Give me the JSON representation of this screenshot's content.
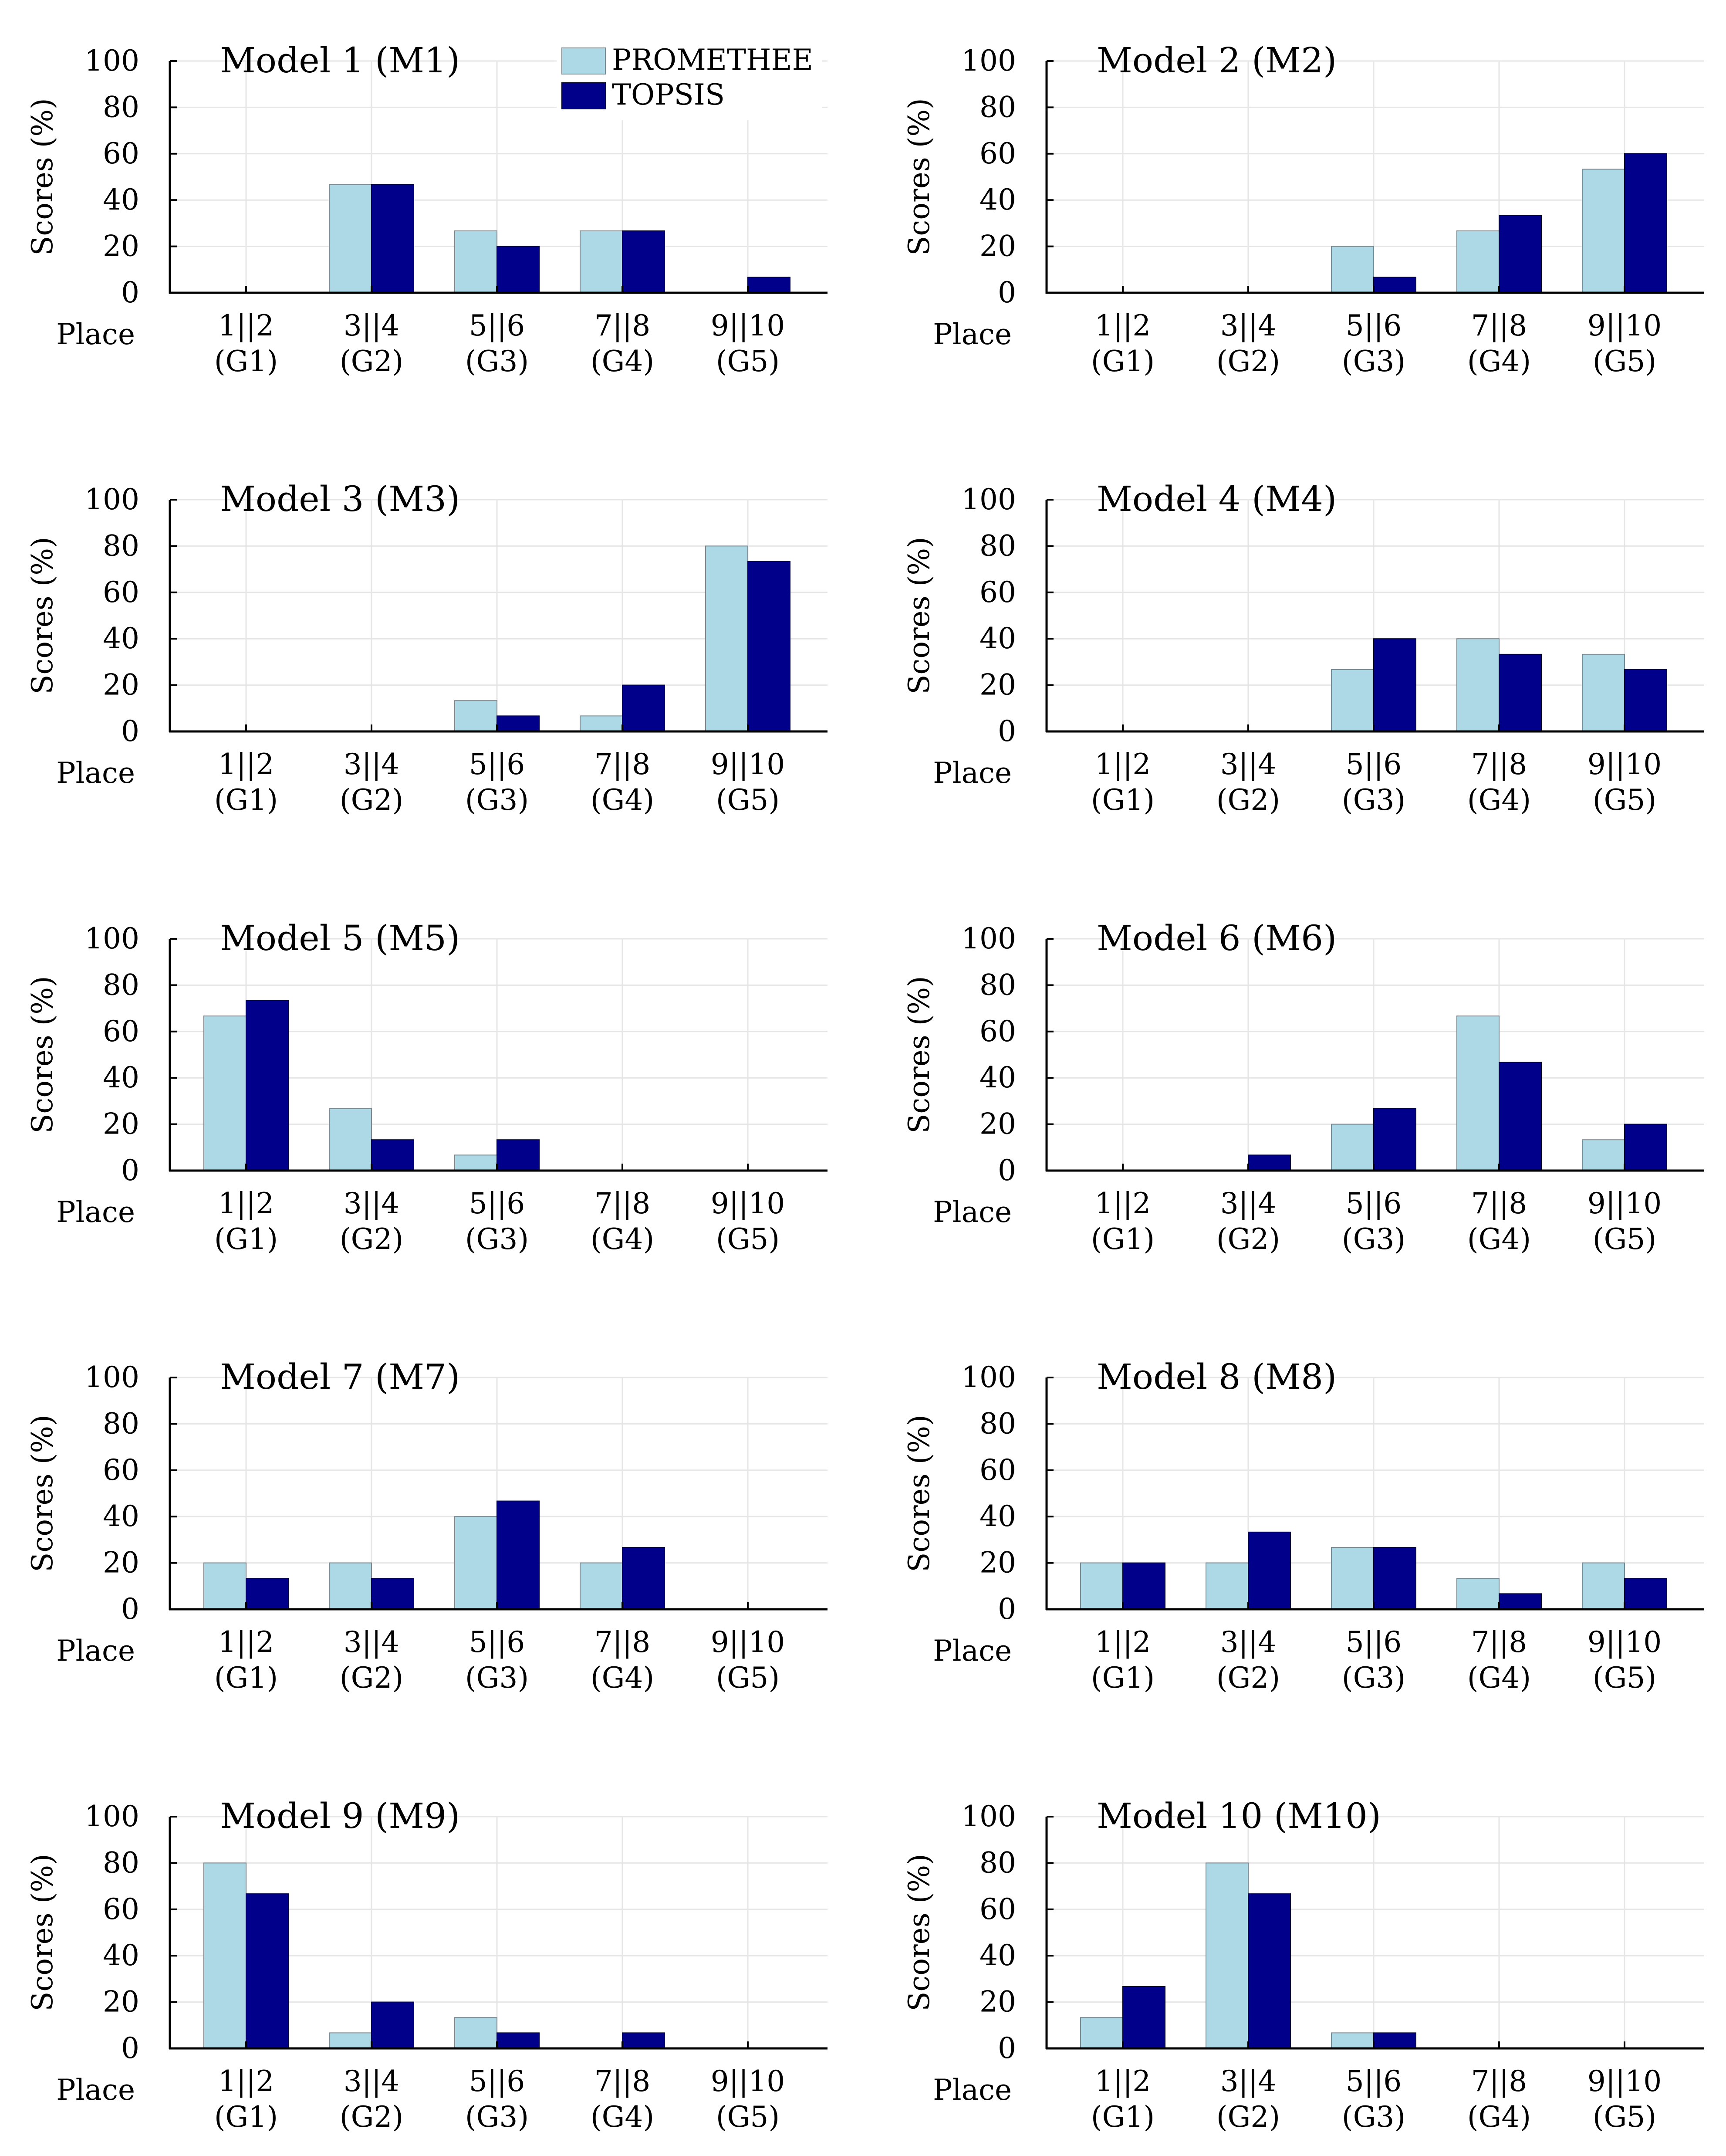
{
  "figure": {
    "place_label": "Place",
    "ylabel": "Scores (%)",
    "legend": [
      {
        "name": "PROMETHEE",
        "color": "#add8e6"
      },
      {
        "name": "TOPSIS",
        "color": "#00008b"
      }
    ],
    "categories": [
      {
        "top": "1||2",
        "bottom": "(G1)"
      },
      {
        "top": "3||4",
        "bottom": "(G2)"
      },
      {
        "top": "5||6",
        "bottom": "(G3)"
      },
      {
        "top": "7||8",
        "bottom": "(G4)"
      },
      {
        "top": "9||10",
        "bottom": "(G5)"
      }
    ],
    "yticks": [
      "0",
      "20",
      "40",
      "60",
      "80",
      "100"
    ]
  },
  "chart_data": [
    {
      "type": "bar",
      "title": "Model 1 (M1)",
      "xlabel": "Place",
      "ylabel": "Scores (%)",
      "categories": [
        "1||2 (G1)",
        "3||4 (G2)",
        "5||6 (G3)",
        "7||8 (G4)",
        "9||10 (G5)"
      ],
      "ylim": [
        0,
        100
      ],
      "grid": true,
      "legend": "top-right",
      "series": [
        {
          "name": "PROMETHEE",
          "values": [
            0,
            46.7,
            26.7,
            26.7,
            0
          ]
        },
        {
          "name": "TOPSIS",
          "values": [
            0,
            46.7,
            20,
            26.7,
            6.7
          ]
        }
      ]
    },
    {
      "type": "bar",
      "title": "Model 2 (M2)",
      "xlabel": "Place",
      "ylabel": "Scores (%)",
      "categories": [
        "1||2 (G1)",
        "3||4 (G2)",
        "5||6 (G3)",
        "7||8 (G4)",
        "9||10 (G5)"
      ],
      "ylim": [
        0,
        100
      ],
      "grid": true,
      "series": [
        {
          "name": "PROMETHEE",
          "values": [
            0,
            0,
            20,
            26.7,
            53.3
          ]
        },
        {
          "name": "TOPSIS",
          "values": [
            0,
            0,
            6.7,
            33.3,
            60
          ]
        }
      ]
    },
    {
      "type": "bar",
      "title": "Model 3 (M3)",
      "xlabel": "Place",
      "ylabel": "Scores (%)",
      "categories": [
        "1||2 (G1)",
        "3||4 (G2)",
        "5||6 (G3)",
        "7||8 (G4)",
        "9||10 (G5)"
      ],
      "ylim": [
        0,
        100
      ],
      "grid": true,
      "series": [
        {
          "name": "PROMETHEE",
          "values": [
            0,
            0,
            13.3,
            6.7,
            80
          ]
        },
        {
          "name": "TOPSIS",
          "values": [
            0,
            0,
            6.7,
            20,
            73.3
          ]
        }
      ]
    },
    {
      "type": "bar",
      "title": "Model 4 (M4)",
      "xlabel": "Place",
      "ylabel": "Scores (%)",
      "categories": [
        "1||2 (G1)",
        "3||4 (G2)",
        "5||6 (G3)",
        "7||8 (G4)",
        "9||10 (G5)"
      ],
      "ylim": [
        0,
        100
      ],
      "grid": true,
      "series": [
        {
          "name": "PROMETHEE",
          "values": [
            0,
            0,
            26.7,
            40,
            33.3
          ]
        },
        {
          "name": "TOPSIS",
          "values": [
            0,
            0,
            40,
            33.3,
            26.7
          ]
        }
      ]
    },
    {
      "type": "bar",
      "title": "Model 5 (M5)",
      "xlabel": "Place",
      "ylabel": "Scores (%)",
      "categories": [
        "1||2 (G1)",
        "3||4 (G2)",
        "5||6 (G3)",
        "7||8 (G4)",
        "9||10 (G5)"
      ],
      "ylim": [
        0,
        100
      ],
      "grid": true,
      "series": [
        {
          "name": "PROMETHEE",
          "values": [
            66.7,
            26.7,
            6.7,
            0,
            0
          ]
        },
        {
          "name": "TOPSIS",
          "values": [
            73.3,
            13.3,
            13.3,
            0,
            0
          ]
        }
      ]
    },
    {
      "type": "bar",
      "title": "Model 6 (M6)",
      "xlabel": "Place",
      "ylabel": "Scores (%)",
      "categories": [
        "1||2 (G1)",
        "3||4 (G2)",
        "5||6 (G3)",
        "7||8 (G4)",
        "9||10 (G5)"
      ],
      "ylim": [
        0,
        100
      ],
      "grid": true,
      "series": [
        {
          "name": "PROMETHEE",
          "values": [
            0,
            0,
            20,
            66.7,
            13.3
          ]
        },
        {
          "name": "TOPSIS",
          "values": [
            0,
            6.7,
            26.7,
            46.7,
            20
          ]
        }
      ]
    },
    {
      "type": "bar",
      "title": "Model 7 (M7)",
      "xlabel": "Place",
      "ylabel": "Scores (%)",
      "categories": [
        "1||2 (G1)",
        "3||4 (G2)",
        "5||6 (G3)",
        "7||8 (G4)",
        "9||10 (G5)"
      ],
      "ylim": [
        0,
        100
      ],
      "grid": true,
      "series": [
        {
          "name": "PROMETHEE",
          "values": [
            20,
            20,
            40,
            20,
            0
          ]
        },
        {
          "name": "TOPSIS",
          "values": [
            13.3,
            13.3,
            46.7,
            26.7,
            0
          ]
        }
      ]
    },
    {
      "type": "bar",
      "title": "Model 8 (M8)",
      "xlabel": "Place",
      "ylabel": "Scores (%)",
      "categories": [
        "1||2 (G1)",
        "3||4 (G2)",
        "5||6 (G3)",
        "7||8 (G4)",
        "9||10 (G5)"
      ],
      "ylim": [
        0,
        100
      ],
      "grid": true,
      "series": [
        {
          "name": "PROMETHEE",
          "values": [
            20,
            20,
            26.7,
            13.3,
            20
          ]
        },
        {
          "name": "TOPSIS",
          "values": [
            20,
            33.3,
            26.7,
            6.7,
            13.3
          ]
        }
      ]
    },
    {
      "type": "bar",
      "title": "Model 9 (M9)",
      "xlabel": "Place",
      "ylabel": "Scores (%)",
      "categories": [
        "1||2 (G1)",
        "3||4 (G2)",
        "5||6 (G3)",
        "7||8 (G4)",
        "9||10 (G5)"
      ],
      "ylim": [
        0,
        100
      ],
      "grid": true,
      "series": [
        {
          "name": "PROMETHEE",
          "values": [
            80,
            6.7,
            13.3,
            0,
            0
          ]
        },
        {
          "name": "TOPSIS",
          "values": [
            66.7,
            20,
            6.7,
            6.7,
            0
          ]
        }
      ]
    },
    {
      "type": "bar",
      "title": "Model 10 (M10)",
      "xlabel": "Place",
      "ylabel": "Scores (%)",
      "categories": [
        "1||2 (G1)",
        "3||4 (G2)",
        "5||6 (G3)",
        "7||8 (G4)",
        "9||10 (G5)"
      ],
      "ylim": [
        0,
        100
      ],
      "grid": true,
      "series": [
        {
          "name": "PROMETHEE",
          "values": [
            13.3,
            80,
            6.7,
            0,
            0
          ]
        },
        {
          "name": "TOPSIS",
          "values": [
            26.7,
            66.7,
            6.7,
            0,
            0
          ]
        }
      ]
    }
  ]
}
